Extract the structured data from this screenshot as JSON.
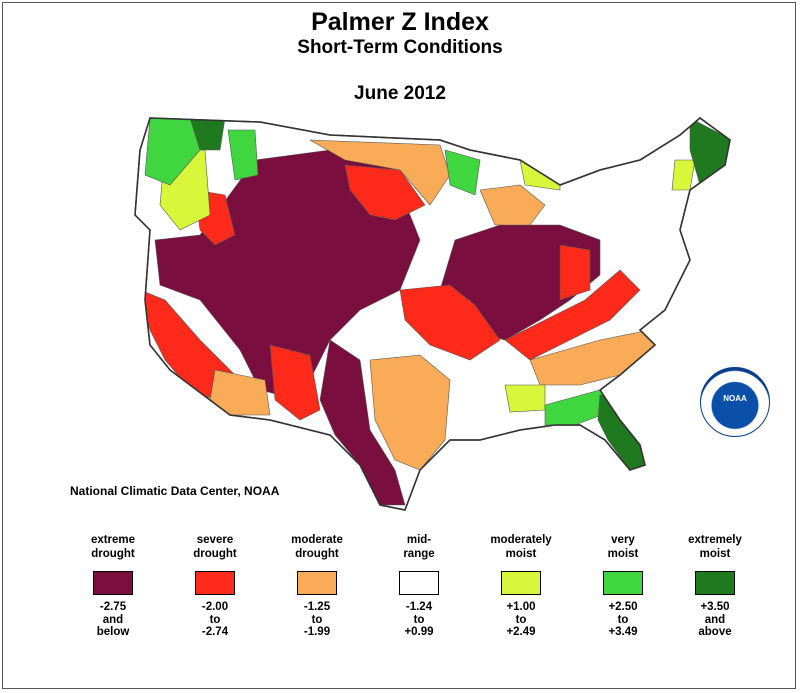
{
  "header": {
    "title": "Palmer Z Index",
    "subtitle": "Short-Term Conditions",
    "date": "June 2012"
  },
  "credit": "National Climatic Data Center, NOAA",
  "logo": {
    "text": "NOAA"
  },
  "legend": [
    {
      "label1": "extreme",
      "label2": "drought",
      "color": "#7a0f3f",
      "range1": "-2.75",
      "range2": "and",
      "range3": "below"
    },
    {
      "label1": "severe",
      "label2": "drought",
      "color": "#ff2a1a",
      "range1": "-2.00",
      "range2": "to",
      "range3": "-2.74"
    },
    {
      "label1": "moderate",
      "label2": "drought",
      "color": "#f9ab58",
      "range1": "-1.25",
      "range2": "to",
      "range3": "-1.99"
    },
    {
      "label1": "mid-",
      "label2": "range",
      "color": "#ffffff",
      "range1": "-1.24",
      "range2": "to",
      "range3": "+0.99"
    },
    {
      "label1": "moderately",
      "label2": "moist",
      "color": "#d8f73a",
      "range1": "+1.00",
      "range2": "to",
      "range3": "+2.49"
    },
    {
      "label1": "very",
      "label2": "moist",
      "color": "#3fd640",
      "range1": "+2.50",
      "range2": "to",
      "range3": "+3.49"
    },
    {
      "label1": "extremely",
      "label2": "moist",
      "color": "#1f7a1f",
      "range1": "+3.50",
      "range2": "and",
      "range3": "above"
    }
  ]
}
